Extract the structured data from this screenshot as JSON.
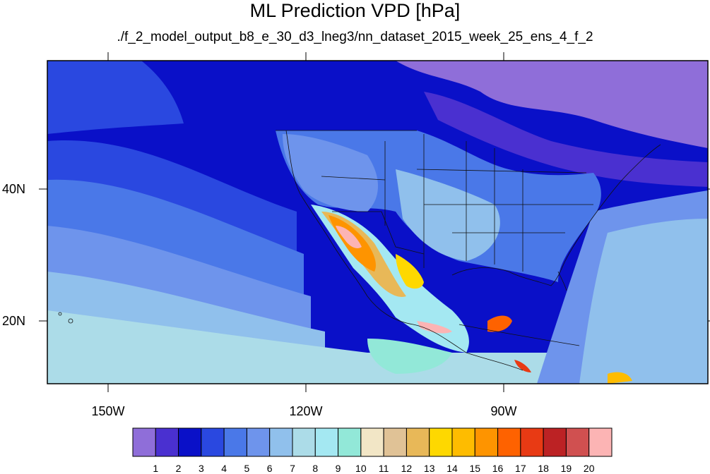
{
  "title": "ML Prediction VPD [hPa]",
  "subtitle": "./f_2_model_output_b8_e_30_d3_lneg3/nn_dataset_2015_week_25_ens_4_f_2",
  "lat_labels": [
    "40N",
    "20N"
  ],
  "lon_labels": [
    "150W",
    "120W",
    "90W"
  ],
  "colorbar": {
    "labels": [
      "1",
      "2",
      "3",
      "4",
      "5",
      "6",
      "7",
      "8",
      "9",
      "10",
      "11",
      "12",
      "13",
      "14",
      "15",
      "16",
      "17",
      "18",
      "19",
      "20"
    ],
    "colors": [
      "#8f6ed9",
      "#4a30d0",
      "#0a10c8",
      "#2a48e0",
      "#4a78e8",
      "#6e94ec",
      "#90c0ec",
      "#acdce8",
      "#a4e8f2",
      "#92e8d8",
      "#f2e6c6",
      "#e0c296",
      "#e8b858",
      "#fed800",
      "#febc00",
      "#fe9400",
      "#fe6200",
      "#e83a14",
      "#bc2224",
      "#d05050",
      "#fcb4b4"
    ]
  },
  "map_colors": {
    "land_outline": "#111111",
    "background": "#1420c8"
  }
}
